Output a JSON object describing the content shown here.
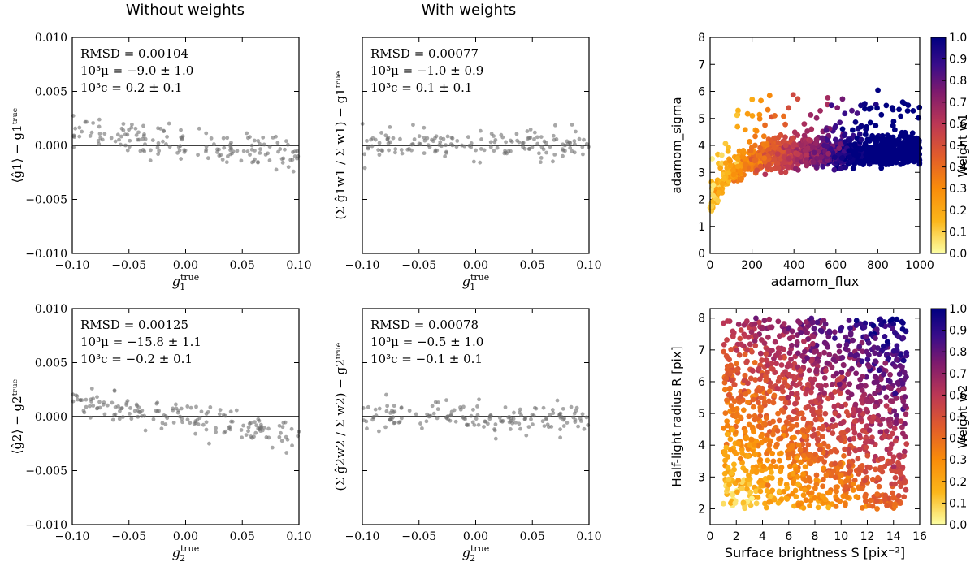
{
  "column_titles": {
    "left": "Without weights",
    "middle": "With weights"
  },
  "colors": {
    "points": "#6e6e6e",
    "axis": "#000000",
    "colormap": [
      "#fcfea4",
      "#f98c0a",
      "#bb3755",
      "#56106e",
      "#0d0887",
      "#000080"
    ]
  },
  "chart_data": [
    {
      "id": "g1-noweights",
      "type": "scatter",
      "xlabel": "g_1^true",
      "ylabel": "⟨ĝ1⟩ − g_1^true",
      "xlim": [
        -0.1,
        0.1
      ],
      "ylim": [
        -0.01,
        0.01
      ],
      "xticks": [
        "−0.10",
        "−0.05",
        "0.00",
        "0.05",
        "0.10"
      ],
      "yticks": [
        "−0.010",
        "−0.005",
        "0.000",
        "0.005",
        "0.010"
      ],
      "show_yticklabels": true,
      "reference_line_y": 0,
      "annotations": [
        "RMSD = 0.00104",
        "10³μ = −9.0 ± 1.0",
        "10³c = 0.2 ± 0.1"
      ],
      "trend": {
        "slope": -0.009,
        "intercept": 0.0002,
        "scatter": 0.00078
      },
      "n_points": 160
    },
    {
      "id": "g1-weights",
      "type": "scatter",
      "xlabel": "g_1^true",
      "ylabel": "(Σ ĝ1w1 / Σ w1) − g_1^true",
      "xlim": [
        -0.1,
        0.1
      ],
      "ylim": [
        -0.01,
        0.01
      ],
      "xticks": [
        "−0.10",
        "−0.05",
        "0.00",
        "0.05",
        "0.10"
      ],
      "yticks": [
        "",
        "",
        "",
        "",
        ""
      ],
      "show_yticklabels": false,
      "reference_line_y": 0,
      "annotations": [
        "RMSD = 0.00077",
        "10³μ = −1.0 ± 0.9",
        "10³c = 0.1 ± 0.1"
      ],
      "trend": {
        "slope": -0.001,
        "intercept": 0.0001,
        "scatter": 0.00066
      },
      "n_points": 160
    },
    {
      "id": "g2-noweights",
      "type": "scatter",
      "xlabel": "g_2^true",
      "ylabel": "⟨ĝ2⟩ − g_2^true",
      "xlim": [
        -0.1,
        0.1
      ],
      "ylim": [
        -0.01,
        0.01
      ],
      "xticks": [
        "−0.10",
        "−0.05",
        "0.00",
        "0.05",
        "0.10"
      ],
      "yticks": [
        "−0.010",
        "−0.005",
        "0.000",
        "0.005",
        "0.010"
      ],
      "show_yticklabels": true,
      "reference_line_y": 0,
      "annotations": [
        "RMSD = 0.00125",
        "10³μ = −15.8 ± 1.1",
        "10³c = −0.2 ± 0.1"
      ],
      "trend": {
        "slope": -0.0158,
        "intercept": -0.0002,
        "scatter": 0.00068
      },
      "n_points": 160
    },
    {
      "id": "g2-weights",
      "type": "scatter",
      "xlabel": "g_2^true",
      "ylabel": "(Σ ĝ2w2 / Σ w2) − g_2^true",
      "xlim": [
        -0.1,
        0.1
      ],
      "ylim": [
        -0.01,
        0.01
      ],
      "xticks": [
        "−0.10",
        "−0.05",
        "0.00",
        "0.05",
        "0.10"
      ],
      "yticks": [
        "",
        "",
        "",
        "",
        ""
      ],
      "show_yticklabels": false,
      "reference_line_y": 0,
      "annotations": [
        "RMSD = 0.00078",
        "10³μ = −0.5 ± 1.0",
        "10³c = −0.1 ± 0.1"
      ],
      "trend": {
        "slope": -0.0005,
        "intercept": -0.0001,
        "scatter": 0.00068
      },
      "n_points": 160
    },
    {
      "id": "w1-map",
      "type": "scatter",
      "xlabel": "adamom_flux",
      "ylabel": "adamom_sigma",
      "xlim": [
        0,
        1000
      ],
      "ylim": [
        0,
        8
      ],
      "xticks": [
        "0",
        "200",
        "400",
        "600",
        "800",
        "1000"
      ],
      "yticks": [
        "0",
        "1",
        "2",
        "3",
        "4",
        "5",
        "6",
        "7",
        "8"
      ],
      "colorbar": {
        "label": "Weight w1",
        "range": [
          0,
          1
        ],
        "ticks": [
          "0.0",
          "0.1",
          "0.2",
          "0.3",
          "0.4",
          "0.5",
          "0.6",
          "0.7",
          "0.8",
          "0.9",
          "1.0"
        ]
      },
      "n_points": 1500
    },
    {
      "id": "w2-map",
      "type": "scatter",
      "xlabel": "Surface brightness S [pix⁻²]",
      "ylabel": "Half-light radius R [pix]",
      "xlim": [
        0,
        16
      ],
      "ylim": [
        1.5,
        8.3
      ],
      "xticks": [
        "0",
        "2",
        "4",
        "6",
        "8",
        "10",
        "12",
        "14",
        "16"
      ],
      "yticks": [
        "2",
        "3",
        "4",
        "5",
        "6",
        "7",
        "8"
      ],
      "colorbar": {
        "label": "Weight w2",
        "range": [
          0,
          1
        ],
        "ticks": [
          "0.0",
          "0.1",
          "0.2",
          "0.3",
          "0.4",
          "0.5",
          "0.6",
          "0.7",
          "0.8",
          "0.9",
          "1.0"
        ]
      },
      "n_points": 1400
    }
  ]
}
